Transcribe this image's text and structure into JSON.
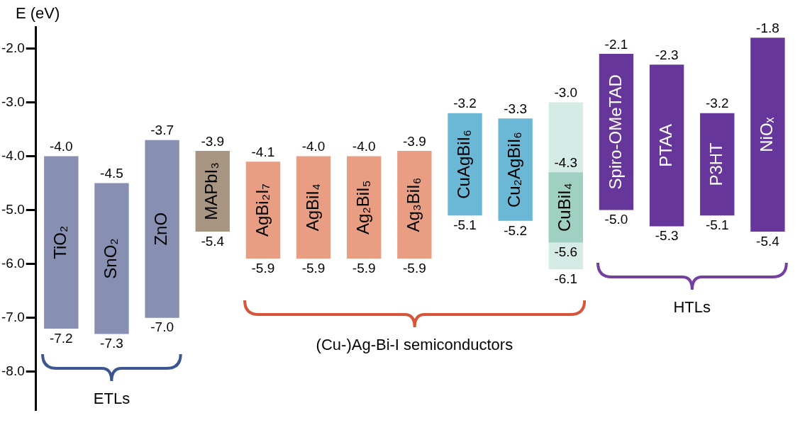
{
  "chart_data": {
    "type": "bar",
    "ylabel": "E (eV)",
    "categories": [
      "TiO₂",
      "SnO₂",
      "ZnO",
      "MAPbI₃",
      "AgBi₂I₇",
      "AgBiI₄",
      "Ag₂BiI₅",
      "Ag₃BiI₆",
      "CuAgBiI₆",
      "Cu₂AgBiI₆",
      "CuBiI₄",
      "Spiro-OMeTAD",
      "PTAA",
      "P3HT",
      "NiOₓ"
    ],
    "series": [
      {
        "colors": [
          "#8790b2",
          "#8790b2",
          "#8790b2",
          "#a89682",
          "#e99e84",
          "#e99e84",
          "#e99e84",
          "#e99e84",
          "#6ab7d6",
          "#6ab7d6",
          "#d5ebe5",
          "#67369a",
          "#67369a",
          "#67369a",
          "#67369a"
        ],
        "base": [
          -7.2,
          -7.3,
          -7.0,
          -5.4,
          -5.9,
          -5.9,
          -5.9,
          -5.9,
          -5.1,
          -5.2,
          -6.1,
          -5.0,
          -5.3,
          -5.1,
          -5.4
        ],
        "values": [
          3.2,
          2.8,
          3.3,
          1.5,
          1.8,
          1.9,
          1.9,
          2.0,
          1.9,
          1.9,
          3.1,
          2.9,
          3.0,
          1.9,
          3.6
        ]
      },
      {
        "color": "#9fd0c1",
        "base": [
          null,
          null,
          null,
          null,
          null,
          null,
          null,
          null,
          null,
          null,
          -5.6,
          null,
          null,
          null,
          null
        ],
        "values": [
          null,
          null,
          null,
          null,
          null,
          null,
          null,
          null,
          null,
          null,
          1.3,
          null,
          null,
          null,
          null
        ]
      }
    ],
    "ylim": [
      -8.7,
      -1.6
    ],
    "yticks": [
      {
        "value": -2,
        "label": "-2.0"
      },
      {
        "value": -3,
        "label": "-3.0"
      },
      {
        "value": -4,
        "label": "-4.0"
      },
      {
        "value": -5,
        "label": "-5.0"
      },
      {
        "value": -6,
        "label": "-6.0"
      },
      {
        "value": -7,
        "label": "-7.0"
      },
      {
        "value": -8,
        "label": "-8.0"
      }
    ],
    "tick_labels": "y",
    "legend": false,
    "grid": false,
    "annotations": [
      {
        "text": "-4.0",
        "x": "TiO₂",
        "y": -4.0
      },
      {
        "text": "-7.2",
        "x": "TiO₂",
        "y": -7.2
      },
      {
        "text": "-4.5",
        "x": "SnO₂",
        "y": -4.5
      },
      {
        "text": "-7.3",
        "x": "SnO₂",
        "y": -7.3
      },
      {
        "text": "-3.7",
        "x": "ZnO",
        "y": -3.7
      },
      {
        "text": "-7.0",
        "x": "ZnO",
        "y": -7.0
      },
      {
        "text": "-3.9",
        "x": "MAPbI₃",
        "y": -3.9
      },
      {
        "text": "-5.4",
        "x": "MAPbI₃",
        "y": -5.4
      },
      {
        "text": "-4.1",
        "x": "AgBi₂I₇",
        "y": -4.1
      },
      {
        "text": "-5.9",
        "x": "AgBi₂I₇",
        "y": -5.9
      },
      {
        "text": "-4.0",
        "x": "AgBiI₄",
        "y": -4.0
      },
      {
        "text": "-5.9",
        "x": "AgBiI₄",
        "y": -5.9
      },
      {
        "text": "-4.0",
        "x": "Ag₂BiI₅",
        "y": -4.0
      },
      {
        "text": "-5.9",
        "x": "Ag₂BiI₅",
        "y": -5.9
      },
      {
        "text": "-3.9",
        "x": "Ag₃BiI₆",
        "y": -3.9
      },
      {
        "text": "-5.9",
        "x": "Ag₃BiI₆",
        "y": -5.9
      },
      {
        "text": "-3.2",
        "x": "CuAgBiI₆",
        "y": -3.2
      },
      {
        "text": "-5.1",
        "x": "CuAgBiI₆",
        "y": -5.1
      },
      {
        "text": "-3.3",
        "x": "Cu₂AgBiI₆",
        "y": -3.3
      },
      {
        "text": "-5.2",
        "x": "Cu₂AgBiI₆",
        "y": -5.2
      },
      {
        "text": "-3.0",
        "x": "CuBiI₄",
        "y": -3.0
      },
      {
        "text": "-6.1",
        "x": "CuBiI₄",
        "y": -6.1
      },
      {
        "text": "-4.3",
        "x": "CuBiI₄",
        "y": -4.3
      },
      {
        "text": "-5.6",
        "x": "CuBiI₄",
        "y": -5.6
      },
      {
        "text": "-2.1",
        "x": "Spiro-OMeTAD",
        "y": -2.1
      },
      {
        "text": "-5.0",
        "x": "Spiro-OMeTAD",
        "y": -5.0
      },
      {
        "text": "-2.3",
        "x": "PTAA",
        "y": -2.3
      },
      {
        "text": "-5.3",
        "x": "PTAA",
        "y": -5.3
      },
      {
        "text": "-3.2",
        "x": "P3HT",
        "y": -3.2
      },
      {
        "text": "-5.1",
        "x": "P3HT",
        "y": -5.1
      },
      {
        "text": "-1.8",
        "x": "NiOₓ",
        "y": -1.8
      },
      {
        "text": "-5.4",
        "x": "NiOₓ",
        "y": -5.4
      },
      "ETLs",
      "(Cu-)Ag-Bi-I semiconductors",
      "HTLs"
    ]
  }
}
